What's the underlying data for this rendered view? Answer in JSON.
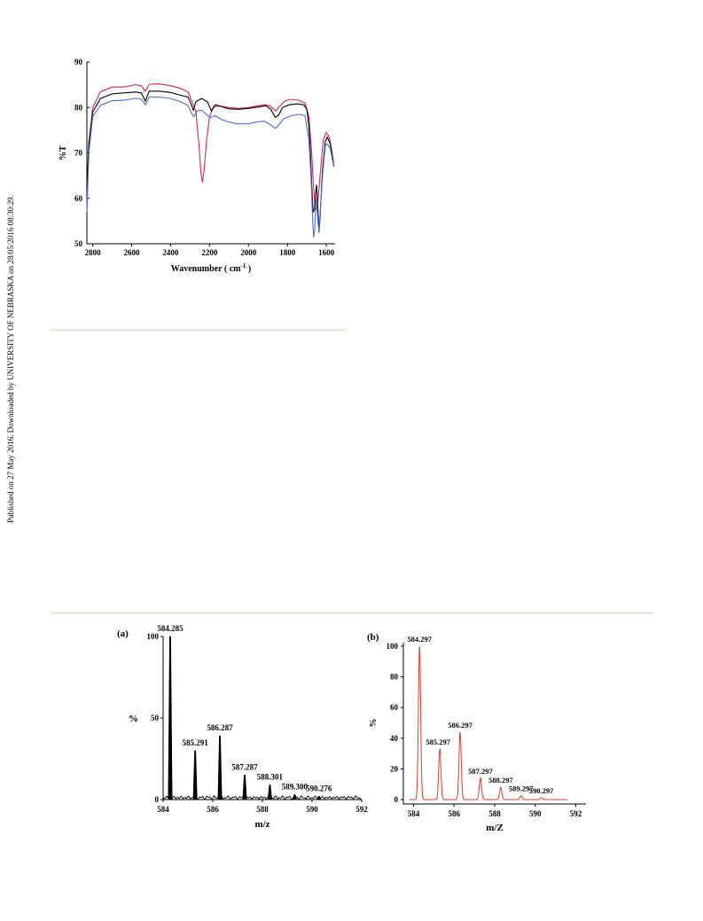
{
  "sidebar_text": "Published on 27 May 2016. Downloaded by UNIVERSITY OF NEBRASKA on 28/05/2016 08:30:29.",
  "colors": {
    "black": "#000000",
    "red": "#e0205a",
    "blue": "#4a6fd0",
    "ms_red": "#e23a2a",
    "rule": "#d8d8c4"
  },
  "chart_data": [
    {
      "type": "line",
      "panel": "ir",
      "xlabel": "Wavenumber ( cm",
      "xlabel_sup": "-1",
      "xlabel_tail": " )",
      "ylabel": "%T",
      "xlim": [
        2830,
        1555
      ],
      "ylim": [
        50,
        90
      ],
      "xticks": [
        2800,
        2600,
        2400,
        2200,
        2000,
        1800,
        1600
      ],
      "yticks": [
        50,
        60,
        70,
        80,
        90
      ],
      "grid": false,
      "series": [
        {
          "color": "#e0205a",
          "points": [
            [
              2830,
              57
            ],
            [
              2820,
              72
            ],
            [
              2800,
              80
            ],
            [
              2760,
              83.5
            ],
            [
              2700,
              84.5
            ],
            [
              2640,
              84.5
            ],
            [
              2580,
              85
            ],
            [
              2550,
              84.8
            ],
            [
              2530,
              83.6
            ],
            [
              2510,
              85.1
            ],
            [
              2460,
              85.2
            ],
            [
              2400,
              84.8
            ],
            [
              2350,
              84.2
            ],
            [
              2310,
              83.4
            ],
            [
              2285,
              80.8
            ],
            [
              2270,
              79
            ],
            [
              2255,
              72
            ],
            [
              2245,
              66
            ],
            [
              2237,
              63.5
            ],
            [
              2228,
              66
            ],
            [
              2215,
              73
            ],
            [
              2200,
              78
            ],
            [
              2180,
              80.2
            ],
            [
              2150,
              80.3
            ],
            [
              2100,
              80
            ],
            [
              2050,
              79.8
            ],
            [
              2000,
              80
            ],
            [
              1960,
              80.3
            ],
            [
              1920,
              80.6
            ],
            [
              1890,
              80.4
            ],
            [
              1860,
              79.2
            ],
            [
              1840,
              80.3
            ],
            [
              1810,
              81.5
            ],
            [
              1780,
              81.8
            ],
            [
              1740,
              81.6
            ],
            [
              1710,
              81
            ],
            [
              1690,
              78
            ],
            [
              1675,
              70
            ],
            [
              1668,
              64
            ],
            [
              1658,
              58
            ],
            [
              1650,
              57.5
            ],
            [
              1642,
              60
            ],
            [
              1630,
              66
            ],
            [
              1615,
              73
            ],
            [
              1600,
              74.5
            ],
            [
              1585,
              73.5
            ],
            [
              1570,
              70
            ],
            [
              1560,
              67
            ]
          ]
        },
        {
          "color": "#000000",
          "points": [
            [
              2830,
              62
            ],
            [
              2820,
              72
            ],
            [
              2800,
              79
            ],
            [
              2760,
              82
            ],
            [
              2700,
              83
            ],
            [
              2640,
              83.2
            ],
            [
              2580,
              83.4
            ],
            [
              2550,
              83.2
            ],
            [
              2530,
              81.4
            ],
            [
              2510,
              83.6
            ],
            [
              2460,
              83.6
            ],
            [
              2400,
              83.3
            ],
            [
              2350,
              82.7
            ],
            [
              2310,
              82.3
            ],
            [
              2295,
              80.8
            ],
            [
              2283,
              79.4
            ],
            [
              2270,
              81.3
            ],
            [
              2240,
              82
            ],
            [
              2210,
              81.2
            ],
            [
              2190,
              79.2
            ],
            [
              2170,
              80.6
            ],
            [
              2140,
              80.2
            ],
            [
              2100,
              79.7
            ],
            [
              2050,
              79.6
            ],
            [
              2000,
              79.8
            ],
            [
              1950,
              80.1
            ],
            [
              1910,
              80.4
            ],
            [
              1885,
              79.6
            ],
            [
              1862,
              77.8
            ],
            [
              1845,
              78.3
            ],
            [
              1825,
              80
            ],
            [
              1790,
              80.6
            ],
            [
              1750,
              80.8
            ],
            [
              1715,
              80.6
            ],
            [
              1700,
              79.5
            ],
            [
              1690,
              76
            ],
            [
              1682,
              70
            ],
            [
              1675,
              63
            ],
            [
              1668,
              57
            ],
            [
              1661,
              57.5
            ],
            [
              1655,
              61
            ],
            [
              1650,
              63
            ],
            [
              1644,
              58
            ],
            [
              1638,
              52.5
            ],
            [
              1632,
              56
            ],
            [
              1620,
              66
            ],
            [
              1605,
              72.5
            ],
            [
              1595,
              73.5
            ],
            [
              1580,
              72
            ],
            [
              1565,
              68
            ]
          ]
        },
        {
          "color": "#4a6fd0",
          "points": [
            [
              2830,
              57
            ],
            [
              2820,
              70
            ],
            [
              2800,
              78
            ],
            [
              2760,
              80.5
            ],
            [
              2700,
              81.5
            ],
            [
              2640,
              81.6
            ],
            [
              2580,
              82
            ],
            [
              2550,
              81.8
            ],
            [
              2530,
              80.6
            ],
            [
              2510,
              82.3
            ],
            [
              2460,
              82.3
            ],
            [
              2400,
              82
            ],
            [
              2350,
              81.3
            ],
            [
              2310,
              80.4
            ],
            [
              2290,
              78.5
            ],
            [
              2280,
              78
            ],
            [
              2265,
              79.2
            ],
            [
              2240,
              79.4
            ],
            [
              2210,
              78.2
            ],
            [
              2195,
              77.8
            ],
            [
              2170,
              78.2
            ],
            [
              2140,
              77.4
            ],
            [
              2100,
              76.8
            ],
            [
              2060,
              76.4
            ],
            [
              2000,
              76.4
            ],
            [
              1960,
              76.8
            ],
            [
              1920,
              77
            ],
            [
              1890,
              76.3
            ],
            [
              1862,
              75.4
            ],
            [
              1845,
              76.1
            ],
            [
              1820,
              77.5
            ],
            [
              1780,
              78.2
            ],
            [
              1740,
              78.5
            ],
            [
              1710,
              78.2
            ],
            [
              1690,
              73
            ],
            [
              1678,
              64
            ],
            [
              1670,
              55
            ],
            [
              1665,
              51.4
            ],
            [
              1660,
              53
            ],
            [
              1655,
              58
            ],
            [
              1650,
              60
            ],
            [
              1644,
              55
            ],
            [
              1638,
              52.8
            ],
            [
              1630,
              58
            ],
            [
              1618,
              66
            ],
            [
              1605,
              71.5
            ],
            [
              1595,
              72
            ],
            [
              1580,
              71
            ],
            [
              1562,
              67
            ]
          ]
        }
      ]
    },
    {
      "type": "bar",
      "panel": "a",
      "panel_label": "(a)",
      "xlabel": "m/z",
      "ylabel": "%",
      "xlim": [
        584,
        592
      ],
      "ylim": [
        0,
        100
      ],
      "xticks": [
        584,
        586,
        588,
        590,
        592
      ],
      "yticks": [
        0,
        50,
        100
      ],
      "peaks": [
        {
          "x": 584.285,
          "y": 100,
          "label": "584.285"
        },
        {
          "x": 585.291,
          "y": 30,
          "label": "585.291"
        },
        {
          "x": 586.287,
          "y": 39,
          "label": "586.287"
        },
        {
          "x": 587.287,
          "y": 15,
          "label": "587.287"
        },
        {
          "x": 588.301,
          "y": 9,
          "label": "588.301"
        },
        {
          "x": 589.3,
          "y": 3,
          "label": "589.300"
        },
        {
          "x": 590.276,
          "y": 2,
          "label": "590.276"
        }
      ]
    },
    {
      "type": "line",
      "panel": "b",
      "panel_label": "(b)",
      "xlabel": "m/Z",
      "ylabel": "%",
      "xlim": [
        583.5,
        592.5
      ],
      "ylim": [
        0,
        100
      ],
      "xticks": [
        584,
        586,
        588,
        590,
        592
      ],
      "yticks": [
        0,
        20,
        40,
        60,
        80,
        100
      ],
      "peaks": [
        {
          "x": 584.297,
          "y": 100,
          "label": "584.297"
        },
        {
          "x": 585.297,
          "y": 33,
          "label": "585.297"
        },
        {
          "x": 586.297,
          "y": 44,
          "label": "586.297"
        },
        {
          "x": 587.297,
          "y": 14,
          "label": "587.297"
        },
        {
          "x": 588.297,
          "y": 8,
          "label": "588.297"
        },
        {
          "x": 589.297,
          "y": 2.5,
          "label": "589.297"
        },
        {
          "x": 590.297,
          "y": 1.2,
          "label": "590.297"
        }
      ]
    }
  ]
}
